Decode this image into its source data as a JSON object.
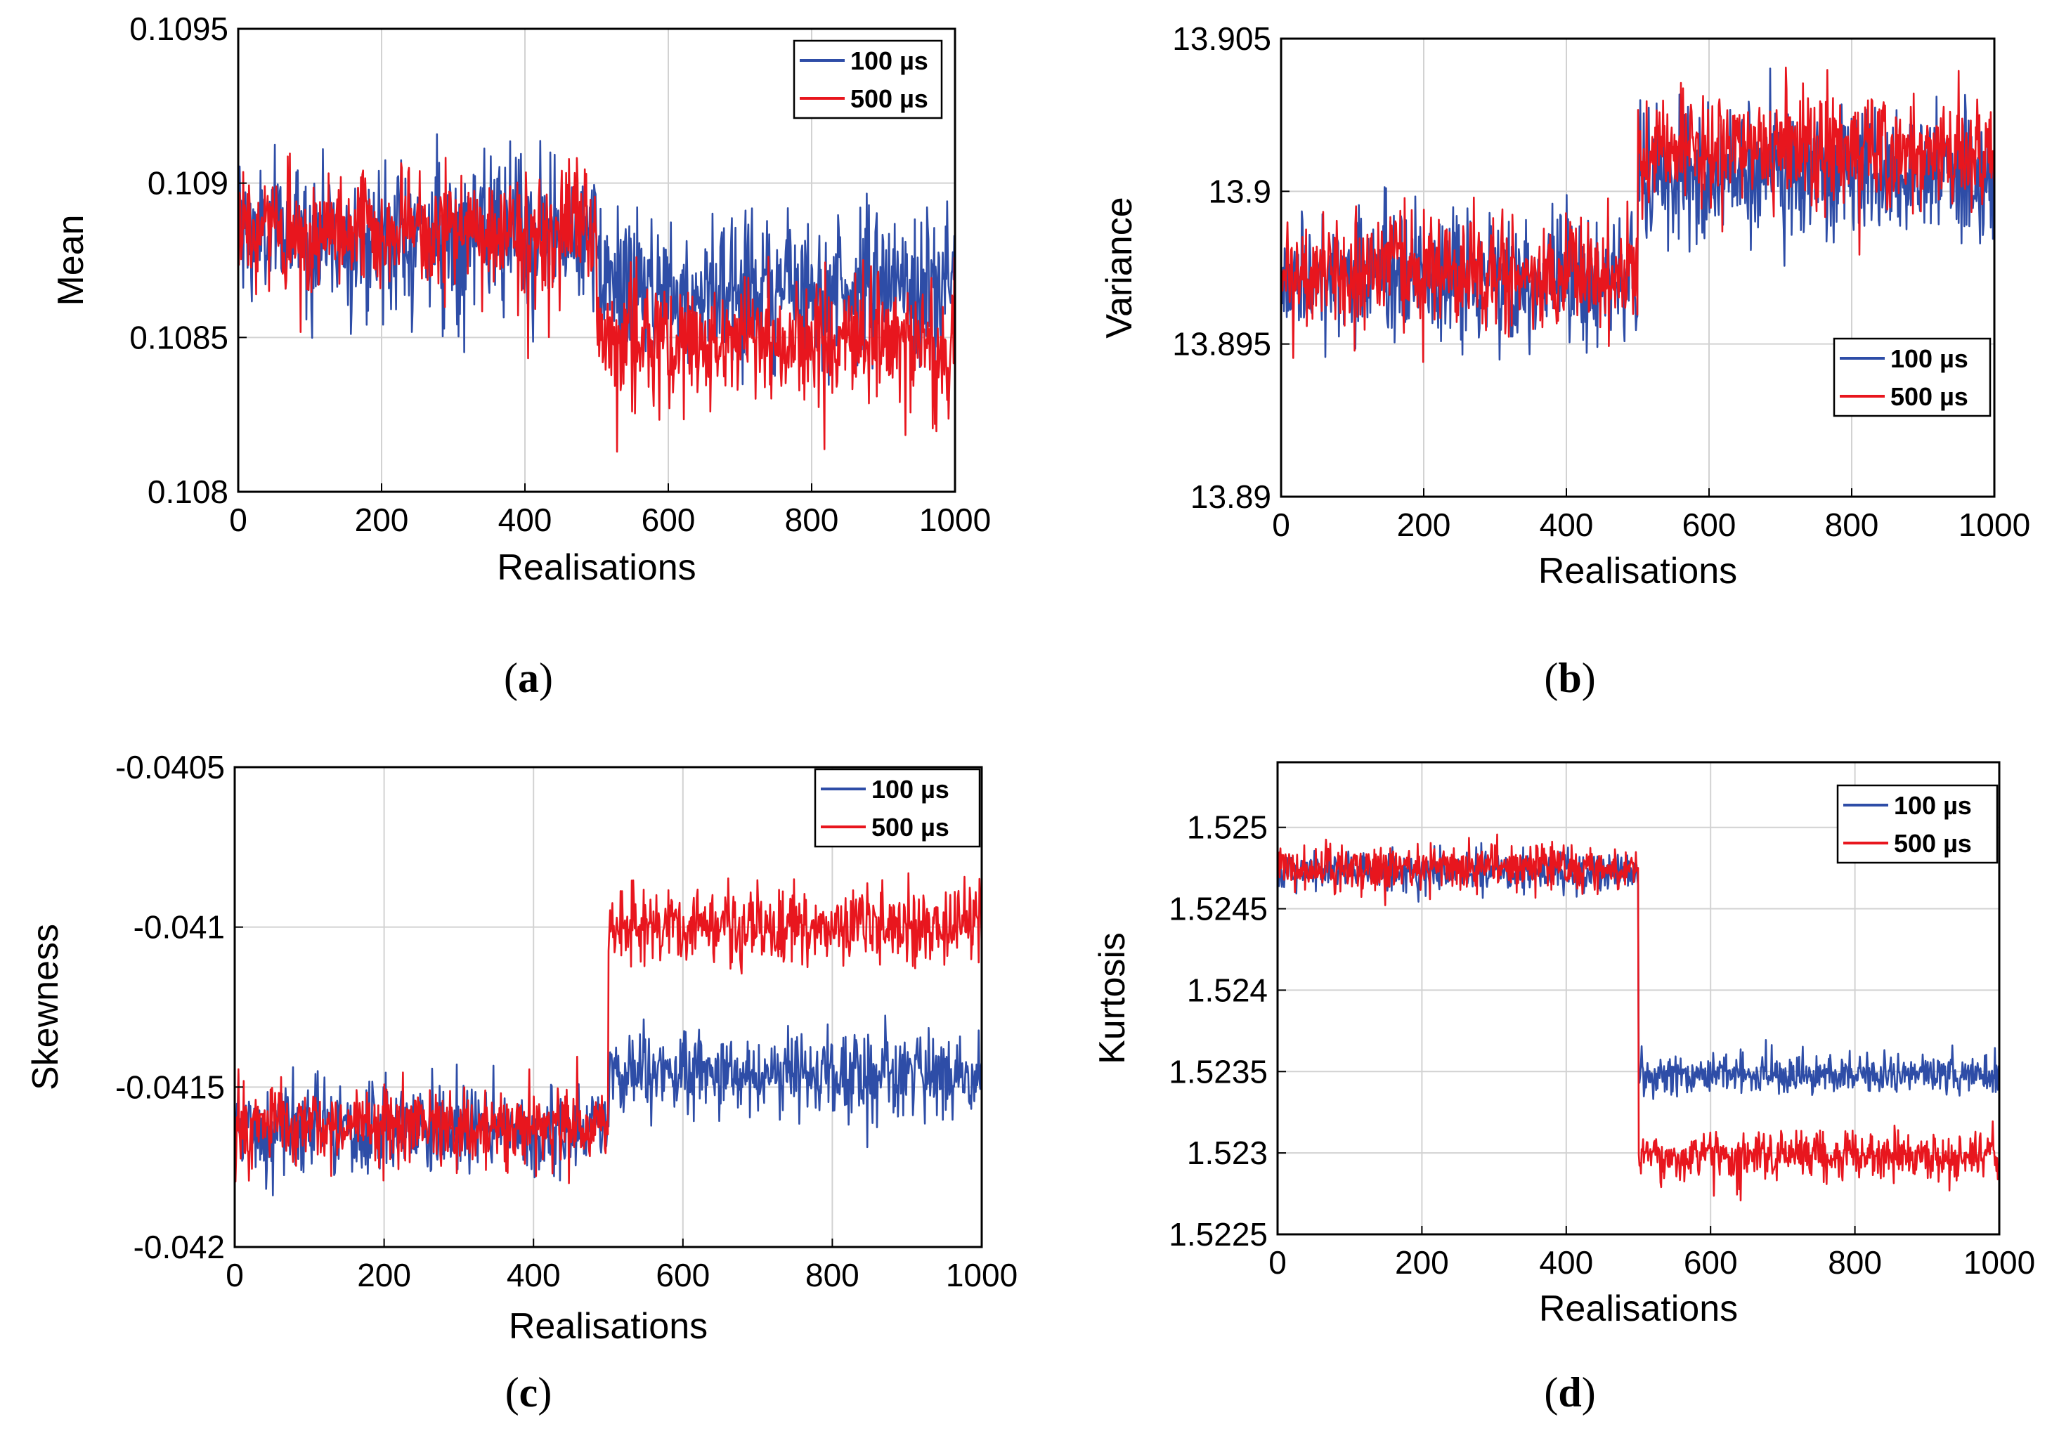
{
  "colors": {
    "series_100": "#2E4DA7",
    "series_500": "#E8161E",
    "grid": "#D2D2D2",
    "axis": "#000000"
  },
  "chart_data": [
    {
      "id": "a",
      "type": "line",
      "caption": "(a)",
      "caption_letter": "a",
      "xlabel": "Realisations",
      "ylabel": "Mean",
      "xlim": [
        0,
        1000
      ],
      "ylim": [
        0.108,
        0.1095
      ],
      "xticks": [
        0,
        200,
        400,
        600,
        800,
        1000
      ],
      "xtick_labels": [
        "0",
        "200",
        "400",
        "600",
        "800",
        "1000"
      ],
      "yticks": [
        0.108,
        0.1085,
        0.109,
        0.1095
      ],
      "ytick_labels": [
        "0.108",
        "0.1085",
        "0.109",
        "0.1095"
      ],
      "grid": true,
      "legend_position": "top-right",
      "series": [
        {
          "name": "100 µs",
          "color_key": "series_100",
          "n": 1000,
          "segments": [
            {
              "start": 0,
              "end": 500,
              "mean": 0.10883,
              "noise": 0.00012
            },
            {
              "start": 500,
              "end": 1000,
              "mean": 0.10866,
              "noise": 0.00012
            }
          ]
        },
        {
          "name": "500 µs",
          "color_key": "series_500",
          "n": 1000,
          "segments": [
            {
              "start": 0,
              "end": 500,
              "mean": 0.10884,
              "noise": 0.0001
            },
            {
              "start": 500,
              "end": 1000,
              "mean": 0.10848,
              "noise": 0.0001
            }
          ]
        }
      ]
    },
    {
      "id": "b",
      "type": "line",
      "caption": "(b)",
      "caption_letter": "b",
      "xlabel": "Realisations",
      "ylabel": "Variance",
      "xlim": [
        0,
        1000
      ],
      "ylim": [
        13.89,
        13.905
      ],
      "xticks": [
        0,
        200,
        400,
        600,
        800,
        1000
      ],
      "xtick_labels": [
        "0",
        "200",
        "400",
        "600",
        "800",
        "1000"
      ],
      "yticks": [
        13.89,
        13.895,
        13.9,
        13.905
      ],
      "ytick_labels": [
        "13.89",
        "13.895",
        "13.9",
        "13.905"
      ],
      "grid": true,
      "legend_position": "middle-right",
      "series": [
        {
          "name": "100 µs",
          "color_key": "series_100",
          "n": 1000,
          "segments": [
            {
              "start": 0,
              "end": 500,
              "mean": 13.8972,
              "noise": 0.0011
            },
            {
              "start": 500,
              "end": 1000,
              "mean": 13.9005,
              "noise": 0.0011
            }
          ]
        },
        {
          "name": "500 µs",
          "color_key": "series_500",
          "n": 1000,
          "segments": [
            {
              "start": 0,
              "end": 500,
              "mean": 13.8973,
              "noise": 0.0009
            },
            {
              "start": 500,
              "end": 1000,
              "mean": 13.9013,
              "noise": 0.0009
            }
          ]
        }
      ]
    },
    {
      "id": "c",
      "type": "line",
      "caption": "(c)",
      "caption_letter": "c",
      "xlabel": "Realisations",
      "ylabel": "Skewness",
      "xlim": [
        0,
        1000
      ],
      "ylim": [
        -0.042,
        -0.0405
      ],
      "xticks": [
        0,
        200,
        400,
        600,
        800,
        1000
      ],
      "xtick_labels": [
        "0",
        "200",
        "400",
        "600",
        "800",
        "1000"
      ],
      "yticks": [
        -0.042,
        -0.0415,
        -0.041,
        -0.0405
      ],
      "ytick_labels": [
        "-0.042",
        "-0.0415",
        "-0.041",
        "-0.0405"
      ],
      "grid": true,
      "legend_position": "top-right",
      "series": [
        {
          "name": "100 µs",
          "color_key": "series_100",
          "n": 1000,
          "segments": [
            {
              "start": 0,
              "end": 500,
              "mean": -0.04164,
              "noise": 7e-05
            },
            {
              "start": 500,
              "end": 1000,
              "mean": -0.04146,
              "noise": 7e-05
            }
          ]
        },
        {
          "name": "500 µs",
          "color_key": "series_500",
          "n": 1000,
          "segments": [
            {
              "start": 0,
              "end": 500,
              "mean": -0.04162,
              "noise": 6e-05
            },
            {
              "start": 500,
              "end": 1000,
              "mean": -0.041,
              "noise": 6e-05
            }
          ]
        }
      ]
    },
    {
      "id": "d",
      "type": "line",
      "caption": "(d)",
      "caption_letter": "d",
      "xlabel": "Realisations",
      "ylabel": "Kurtosis",
      "xlim": [
        0,
        1000
      ],
      "ylim": [
        1.5225,
        1.5254
      ],
      "xticks": [
        0,
        200,
        400,
        600,
        800,
        1000
      ],
      "xtick_labels": [
        "0",
        "200",
        "400",
        "600",
        "800",
        "1000"
      ],
      "yticks": [
        1.5225,
        1.523,
        1.5235,
        1.524,
        1.5245,
        1.525
      ],
      "ytick_labels": [
        "1.5225",
        "1.523",
        "1.5235",
        "1.524",
        "1.5245",
        "1.525"
      ],
      "grid": true,
      "legend_position": "top-right",
      "series": [
        {
          "name": "100 µs",
          "color_key": "series_100",
          "n": 1000,
          "segments": [
            {
              "start": 0,
              "end": 500,
              "mean": 1.52473,
              "noise": 6e-05
            },
            {
              "start": 500,
              "end": 1000,
              "mean": 1.52348,
              "noise": 6e-05
            }
          ]
        },
        {
          "name": "500 µs",
          "color_key": "series_500",
          "n": 1000,
          "segments": [
            {
              "start": 0,
              "end": 500,
              "mean": 1.52475,
              "noise": 7e-05
            },
            {
              "start": 500,
              "end": 1000,
              "mean": 1.52298,
              "noise": 7e-05
            }
          ]
        }
      ]
    }
  ]
}
